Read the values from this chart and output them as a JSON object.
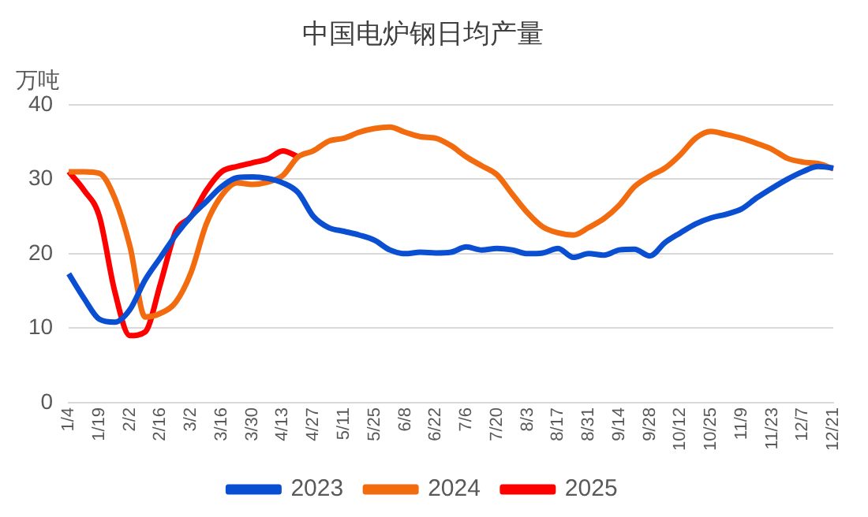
{
  "chart_data": {
    "type": "line",
    "title": "中国电炉钢日均产量",
    "ylabel": "万吨",
    "categories": [
      "1/4",
      null,
      "1/19",
      null,
      "2/2",
      null,
      "2/16",
      null,
      "3/2",
      null,
      "3/16",
      null,
      "3/30",
      null,
      "4/13",
      null,
      "4/27",
      null,
      "5/11",
      null,
      "5/25",
      null,
      "6/8",
      null,
      "6/22",
      null,
      "7/6",
      null,
      "7/20",
      null,
      "8/3",
      null,
      "8/17",
      null,
      "8/31",
      null,
      "9/14",
      null,
      "9/28",
      null,
      "10/12",
      null,
      "10/25",
      null,
      "11/9",
      null,
      "11/23",
      null,
      "12/7",
      null,
      "12/21"
    ],
    "series": [
      {
        "name": "2023",
        "color": "#0a4fd1",
        "values": [
          17.3,
          14,
          11.2,
          10.8,
          12.5,
          16.5,
          19.5,
          22.5,
          25,
          27,
          29,
          30.2,
          30.3,
          30.1,
          29.5,
          28.2,
          25,
          23.5,
          23,
          22.5,
          21.8,
          20.5,
          20,
          20.2,
          20.1,
          20.2,
          20.9,
          20.5,
          20.7,
          20.5,
          20,
          20.1,
          20.7,
          19.5,
          20,
          19.8,
          20.5,
          20.6,
          19.7,
          21.5,
          22.8,
          24,
          24.8,
          25.3,
          26,
          27.5,
          28.8,
          30,
          31,
          31.7,
          31.5
        ]
      },
      {
        "name": "2024",
        "color": "#f26b0f",
        "values": [
          31,
          31,
          30.8,
          27.5,
          21,
          11.5,
          12,
          13.5,
          17.5,
          24,
          27.8,
          29.5,
          29.3,
          29.6,
          30.5,
          33,
          33.8,
          35.1,
          35.5,
          36.3,
          36.8,
          37,
          36.3,
          35.7,
          35.5,
          34.5,
          33,
          31.8,
          30.6,
          28,
          25.5,
          23.6,
          22.8,
          22.5,
          23.5,
          24.7,
          26.5,
          29,
          30.4,
          31.5,
          33.3,
          35.5,
          36.4,
          36,
          35.5,
          34.8,
          34,
          32.8,
          32.3,
          32.1,
          31.4
        ]
      },
      {
        "name": "2025",
        "color": "#ff0000",
        "values": [
          31,
          28.5,
          25,
          15,
          9,
          9.5,
          16,
          23,
          25,
          28.5,
          31,
          31.7,
          32.2,
          32.7,
          33.8,
          33,
          null,
          null,
          null,
          null,
          null,
          null,
          null,
          null,
          null,
          null,
          null,
          null,
          null,
          null,
          null,
          null,
          null,
          null,
          null,
          null,
          null,
          null,
          null,
          null,
          null,
          null,
          null,
          null,
          null,
          null,
          null,
          null,
          null,
          null,
          null
        ]
      }
    ],
    "ylim": [
      0,
      40
    ],
    "yticks": [
      0,
      10,
      20,
      30,
      40
    ],
    "grid": "y",
    "legend": "bottom",
    "marker": "none",
    "line_style": "solid"
  }
}
